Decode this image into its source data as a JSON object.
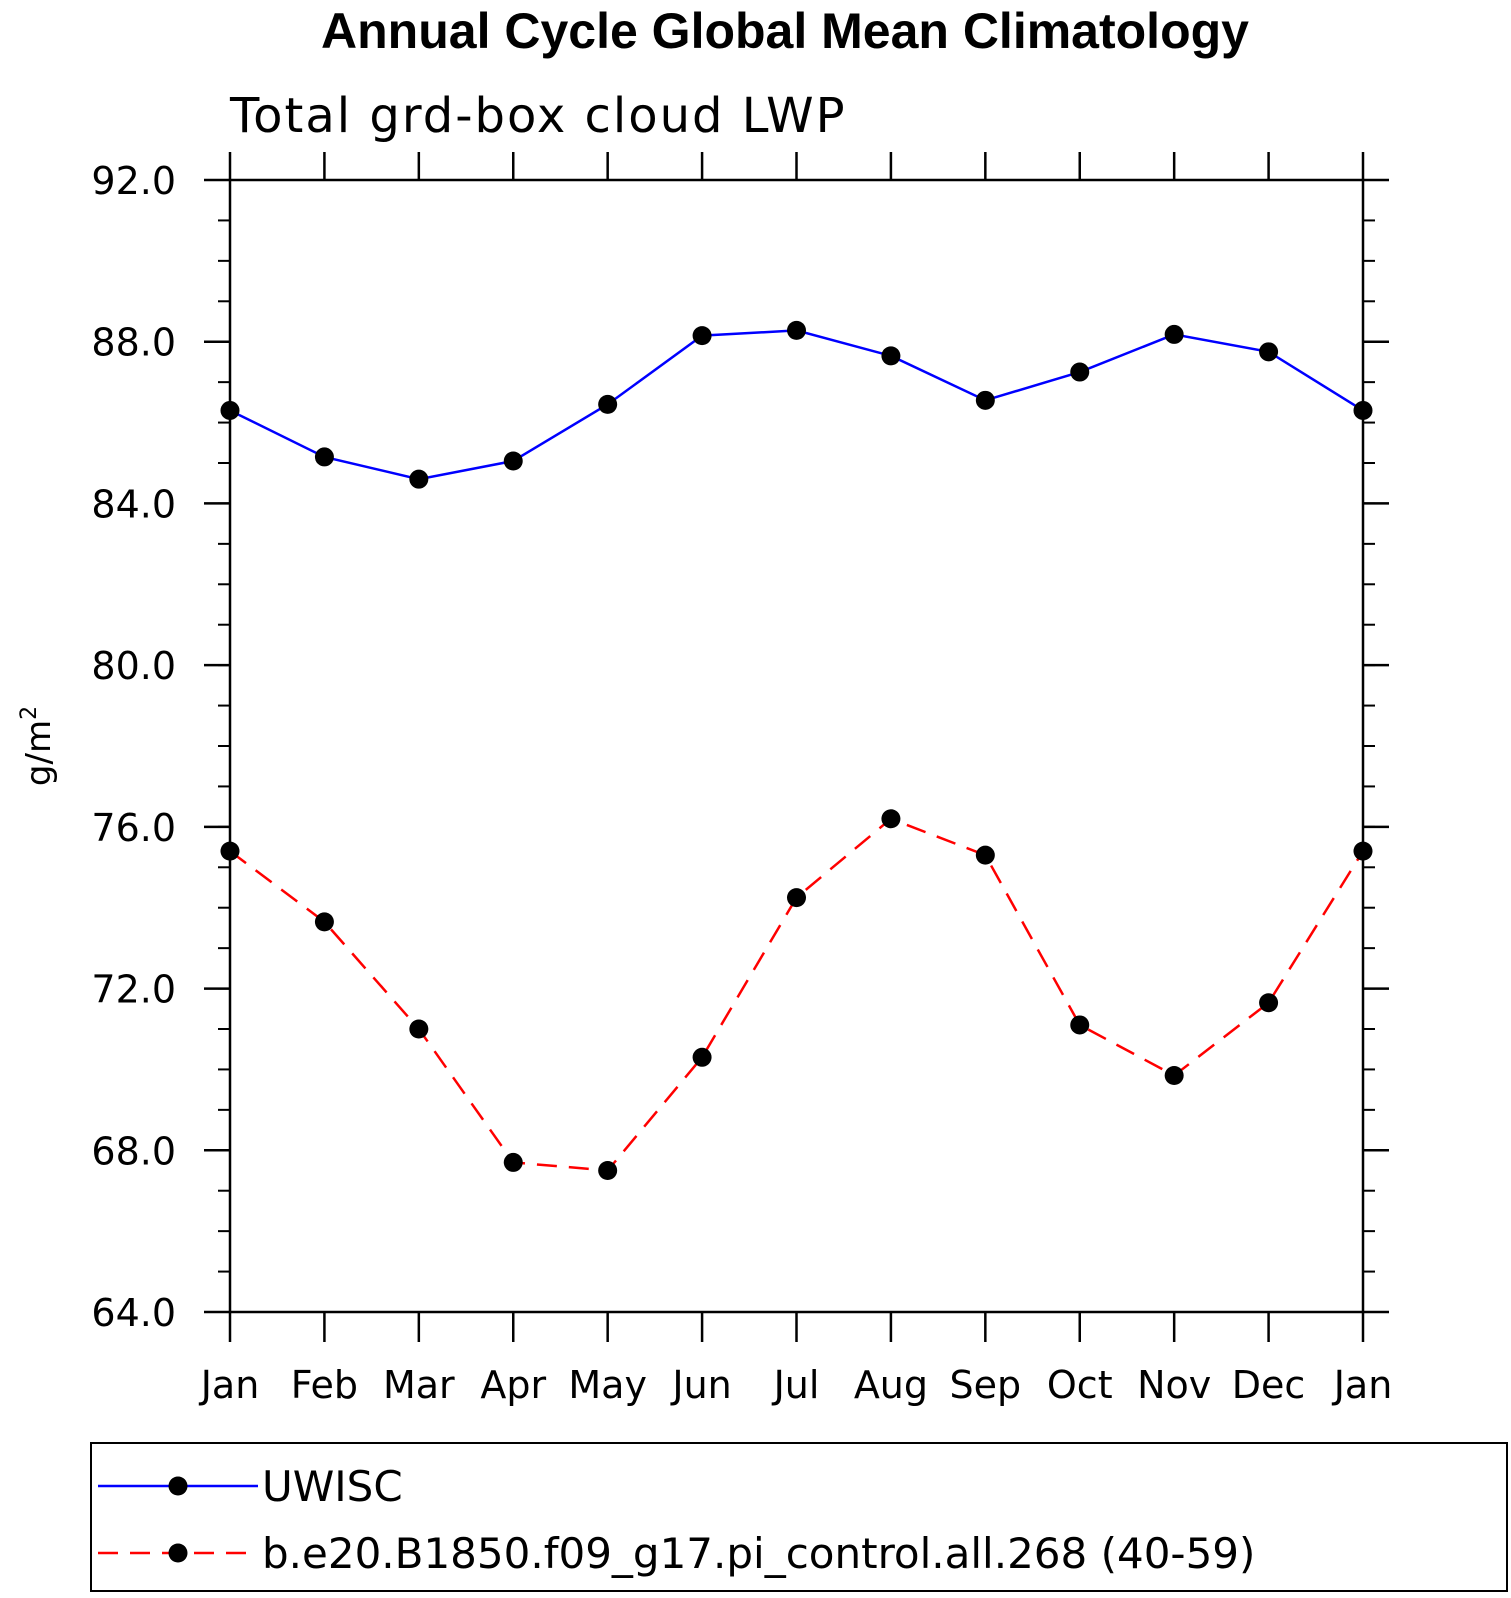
{
  "chart_data": {
    "type": "line",
    "title": "Annual Cycle Global Mean Climatology",
    "subtitle": "Total grd-box cloud LWP",
    "ylabel": "g/m",
    "ylabel_superscript": "2",
    "xlabel": "",
    "categories": [
      "Jan",
      "Feb",
      "Mar",
      "Apr",
      "May",
      "Jun",
      "Jul",
      "Aug",
      "Sep",
      "Oct",
      "Nov",
      "Dec",
      "Jan"
    ],
    "ylim": [
      64.0,
      92.0
    ],
    "yticks": [
      64.0,
      68.0,
      72.0,
      76.0,
      80.0,
      84.0,
      88.0,
      92.0
    ],
    "ytick_labels": [
      "64.0",
      "68.0",
      "72.0",
      "76.0",
      "80.0",
      "84.0",
      "88.0",
      "92.0"
    ],
    "y_minor_step": 1.0,
    "grid": false,
    "legend_position": "bottom",
    "series": [
      {
        "name": "UWISC",
        "color": "#0000ff",
        "line_style": "solid",
        "marker": "filled-circle",
        "values": [
          86.3,
          85.15,
          84.6,
          85.05,
          86.45,
          88.15,
          88.28,
          87.65,
          86.55,
          87.25,
          88.18,
          87.75,
          86.3
        ]
      },
      {
        "name": "b.e20.B1850.f09_g17.pi_control.all.268 (40-59)",
        "color": "#ff0000",
        "line_style": "dashed",
        "marker": "filled-circle",
        "values": [
          75.4,
          73.65,
          71.0,
          67.7,
          67.5,
          70.3,
          74.25,
          76.2,
          75.3,
          71.1,
          69.85,
          71.65,
          75.4
        ]
      }
    ]
  }
}
